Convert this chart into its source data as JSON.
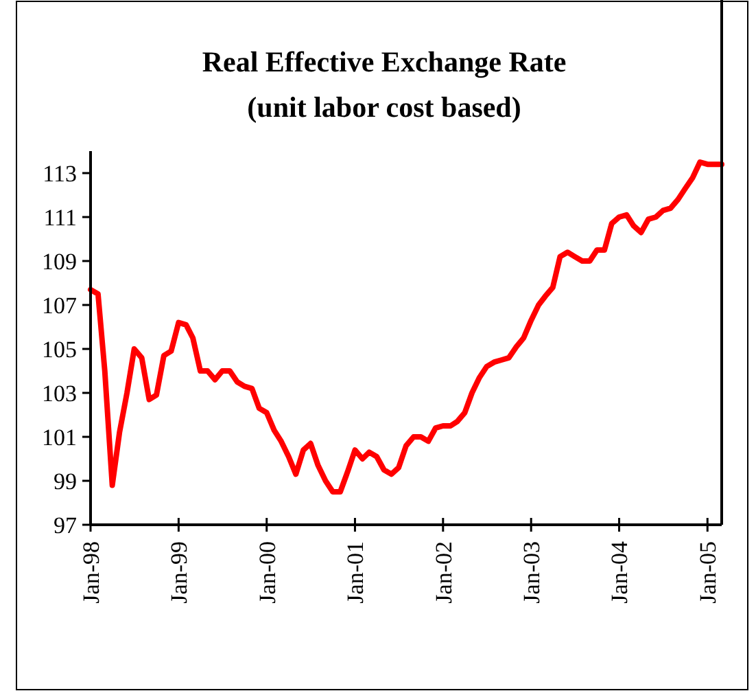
{
  "chart_data": {
    "type": "line",
    "title": "Real Effective Exchange Rate",
    "subtitle": "(unit labor cost based)",
    "x": [
      "1998-01",
      "1998-02",
      "1998-03",
      "1998-04",
      "1998-05",
      "1998-06",
      "1998-07",
      "1998-08",
      "1998-09",
      "1998-10",
      "1998-11",
      "1998-12",
      "1999-01",
      "1999-02",
      "1999-03",
      "1999-04",
      "1999-05",
      "1999-06",
      "1999-07",
      "1999-08",
      "1999-09",
      "1999-10",
      "1999-11",
      "1999-12",
      "2000-01",
      "2000-02",
      "2000-03",
      "2000-04",
      "2000-05",
      "2000-06",
      "2000-07",
      "2000-08",
      "2000-09",
      "2000-10",
      "2000-11",
      "2000-12",
      "2001-01",
      "2001-02",
      "2001-03",
      "2001-04",
      "2001-05",
      "2001-06",
      "2001-07",
      "2001-08",
      "2001-09",
      "2001-10",
      "2001-11",
      "2001-12",
      "2002-01",
      "2002-02",
      "2002-03",
      "2002-04",
      "2002-05",
      "2002-06",
      "2002-07",
      "2002-08",
      "2002-09",
      "2002-10",
      "2002-11",
      "2002-12",
      "2003-01",
      "2003-02",
      "2003-03",
      "2003-04",
      "2003-05",
      "2003-06",
      "2003-07",
      "2003-08",
      "2003-09",
      "2003-10",
      "2003-11",
      "2003-12",
      "2004-01",
      "2004-02",
      "2004-03",
      "2004-04",
      "2004-05",
      "2004-06",
      "2004-07",
      "2004-08",
      "2004-09",
      "2004-10",
      "2004-11",
      "2004-12",
      "2005-01",
      "2005-02",
      "2005-03"
    ],
    "series": [
      {
        "color": "#ff0000",
        "values": [
          107.7,
          107.5,
          104,
          98.8,
          101.2,
          103,
          105,
          104.6,
          102.7,
          102.9,
          104.7,
          104.9,
          106.2,
          106.1,
          105.5,
          104,
          104,
          103.6,
          104,
          104,
          103.5,
          103.3,
          103.2,
          102.3,
          102.1,
          101.3,
          100.8,
          100.1,
          99.3,
          100.4,
          100.7,
          99.7,
          99,
          98.5,
          98.5,
          99.4,
          100.4,
          100,
          100.3,
          100.1,
          99.5,
          99.3,
          99.6,
          100.6,
          101,
          101,
          100.8,
          101.4,
          101.5,
          101.5,
          101.7,
          102.1,
          103,
          103.7,
          104.2,
          104.4,
          104.5,
          104.6,
          105.1,
          105.5,
          106.3,
          107,
          107.4,
          107.8,
          109.2,
          109.4,
          109.2,
          109,
          109,
          109.5,
          109.5,
          110.7,
          111,
          111.1,
          110.6,
          110.3,
          110.9,
          111,
          111.3,
          111.4,
          111.8,
          112.3,
          112.8,
          113.5,
          113.4,
          113.4,
          113.4
        ]
      }
    ],
    "xlim": [
      "1998-01",
      "2005-03"
    ],
    "xticks": [
      {
        "value": "1998-01",
        "label": "Jan-98"
      },
      {
        "value": "1999-01",
        "label": "Jan-99"
      },
      {
        "value": "2000-01",
        "label": "Jan-00"
      },
      {
        "value": "2001-01",
        "label": "Jan-01"
      },
      {
        "value": "2002-01",
        "label": "Jan-02"
      },
      {
        "value": "2003-01",
        "label": "Jan-03"
      },
      {
        "value": "2004-01",
        "label": "Jan-04"
      },
      {
        "value": "2005-01",
        "label": "Jan-05"
      }
    ],
    "ylim": [
      97,
      114
    ],
    "yticks": [
      97,
      99,
      101,
      103,
      105,
      107,
      109,
      111,
      113
    ],
    "grid": false,
    "marker": "none",
    "line_style": "solid"
  }
}
